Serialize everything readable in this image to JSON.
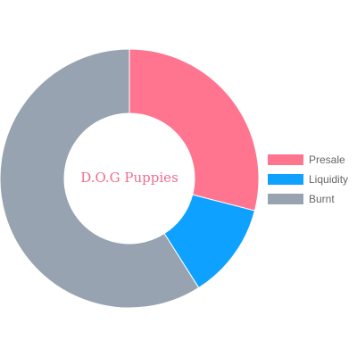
{
  "chart_data": {
    "type": "pie",
    "donut": true,
    "categories": [
      "Presale",
      "Liquidity",
      "Burnt"
    ],
    "values": [
      29,
      12,
      59
    ],
    "colors": [
      "#ff7590",
      "#0fa1ff",
      "#97a3b0"
    ],
    "center_text": "D.O.G Puppies",
    "center_text_color": "#ef6e8e",
    "legend_position": "right"
  }
}
